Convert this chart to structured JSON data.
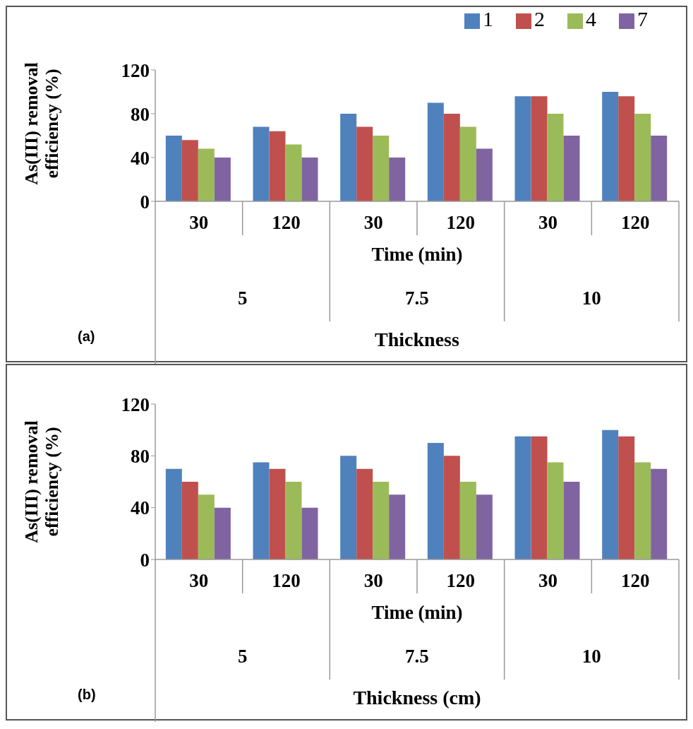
{
  "chart_data": [
    {
      "type": "bar",
      "ylabel": "As(III) removal efficiency (%)",
      "xlabel": "Time (min)",
      "categories": [
        "30",
        "120",
        "30",
        "120",
        "30",
        "120"
      ],
      "series": [
        {
          "name": "1",
          "color": "#4f81bd",
          "values": [
            60,
            68,
            80,
            90,
            96,
            100
          ]
        },
        {
          "name": "2",
          "color": "#c0504d",
          "values": [
            56,
            64,
            68,
            80,
            96,
            96
          ]
        },
        {
          "name": "4",
          "color": "#9bbb59",
          "values": [
            48,
            52,
            60,
            68,
            80,
            80
          ]
        },
        {
          "name": "7",
          "color": "#8064a2",
          "values": [
            40,
            40,
            40,
            48,
            60,
            60
          ]
        }
      ],
      "ylim": [
        0,
        120
      ],
      "yticks": [
        0,
        40,
        80,
        120
      ],
      "legend": "top right",
      "annotations": [
        "5",
        "7.5",
        "10",
        "Thickness",
        "(a)"
      ]
    },
    {
      "type": "bar",
      "ylabel": "As(III) removal efficiency (%)",
      "xlabel": "Time (min)",
      "categories": [
        "30",
        "120",
        "30",
        "120",
        "30",
        "120"
      ],
      "series": [
        {
          "color": "#4f81bd",
          "values": [
            70,
            75,
            80,
            90,
            95,
            100
          ]
        },
        {
          "color": "#c0504d",
          "values": [
            60,
            70,
            70,
            80,
            95,
            95
          ]
        },
        {
          "color": "#9bbb59",
          "values": [
            50,
            60,
            60,
            60,
            75,
            75
          ]
        },
        {
          "color": "#8064a2",
          "values": [
            40,
            40,
            50,
            50,
            60,
            70
          ]
        }
      ],
      "ylim": [
        0,
        120
      ],
      "yticks": [
        0,
        40,
        80,
        120
      ],
      "annotations": [
        "5",
        "7.5",
        "10",
        "Thickness (cm)",
        "(b)"
      ]
    }
  ]
}
